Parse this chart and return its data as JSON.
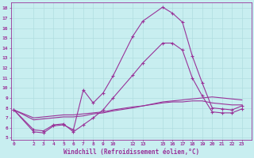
{
  "xlabel": "Windchill (Refroidissement éolien,°C)",
  "background_color": "#c8eef0",
  "line_color": "#993399",
  "grid_color": "#b0dde0",
  "x_ticks": [
    0,
    2,
    3,
    4,
    5,
    6,
    7,
    8,
    9,
    10,
    12,
    13,
    15,
    16,
    17,
    18,
    19,
    20,
    21,
    22,
    23
  ],
  "y_ticks": [
    5,
    6,
    7,
    8,
    9,
    10,
    11,
    12,
    13,
    14,
    15,
    16,
    17,
    18
  ],
  "ylim": [
    4.8,
    18.6
  ],
  "xlim": [
    -0.3,
    24.0
  ],
  "series": [
    {
      "x": [
        0,
        2,
        3,
        4,
        5,
        6,
        7,
        8,
        9,
        10,
        12,
        13,
        15,
        16,
        17,
        18,
        19,
        20,
        21,
        22,
        23
      ],
      "y": [
        7.8,
        5.6,
        5.5,
        6.2,
        6.3,
        5.8,
        9.8,
        8.5,
        9.5,
        11.2,
        15.2,
        16.7,
        18.1,
        17.5,
        16.6,
        13.2,
        10.5,
        8.0,
        7.9,
        7.8,
        8.2
      ],
      "marker": true
    },
    {
      "x": [
        0,
        2,
        3,
        4,
        5,
        6,
        7,
        8,
        9,
        10,
        12,
        13,
        15,
        16,
        17,
        18,
        19,
        20,
        21,
        22,
        23
      ],
      "y": [
        7.8,
        5.8,
        5.7,
        6.3,
        6.4,
        5.6,
        6.3,
        7.0,
        7.8,
        9.0,
        11.3,
        12.5,
        14.5,
        14.5,
        13.8,
        11.0,
        9.2,
        7.6,
        7.5,
        7.5,
        7.9
      ],
      "marker": true
    },
    {
      "x": [
        0,
        2,
        3,
        4,
        5,
        6,
        7,
        8,
        9,
        10,
        12,
        13,
        15,
        16,
        17,
        18,
        19,
        20,
        21,
        22,
        23
      ],
      "y": [
        7.8,
        6.8,
        6.9,
        7.0,
        7.1,
        7.1,
        7.2,
        7.4,
        7.5,
        7.7,
        8.0,
        8.2,
        8.6,
        8.7,
        8.8,
        8.9,
        9.0,
        9.1,
        9.0,
        8.9,
        8.8
      ],
      "marker": false
    },
    {
      "x": [
        0,
        2,
        3,
        4,
        5,
        6,
        7,
        8,
        9,
        10,
        12,
        13,
        15,
        16,
        17,
        18,
        19,
        20,
        21,
        22,
        23
      ],
      "y": [
        7.8,
        7.0,
        7.1,
        7.2,
        7.3,
        7.3,
        7.4,
        7.5,
        7.6,
        7.8,
        8.1,
        8.2,
        8.5,
        8.6,
        8.6,
        8.7,
        8.7,
        8.5,
        8.4,
        8.3,
        8.3
      ],
      "marker": false
    }
  ]
}
